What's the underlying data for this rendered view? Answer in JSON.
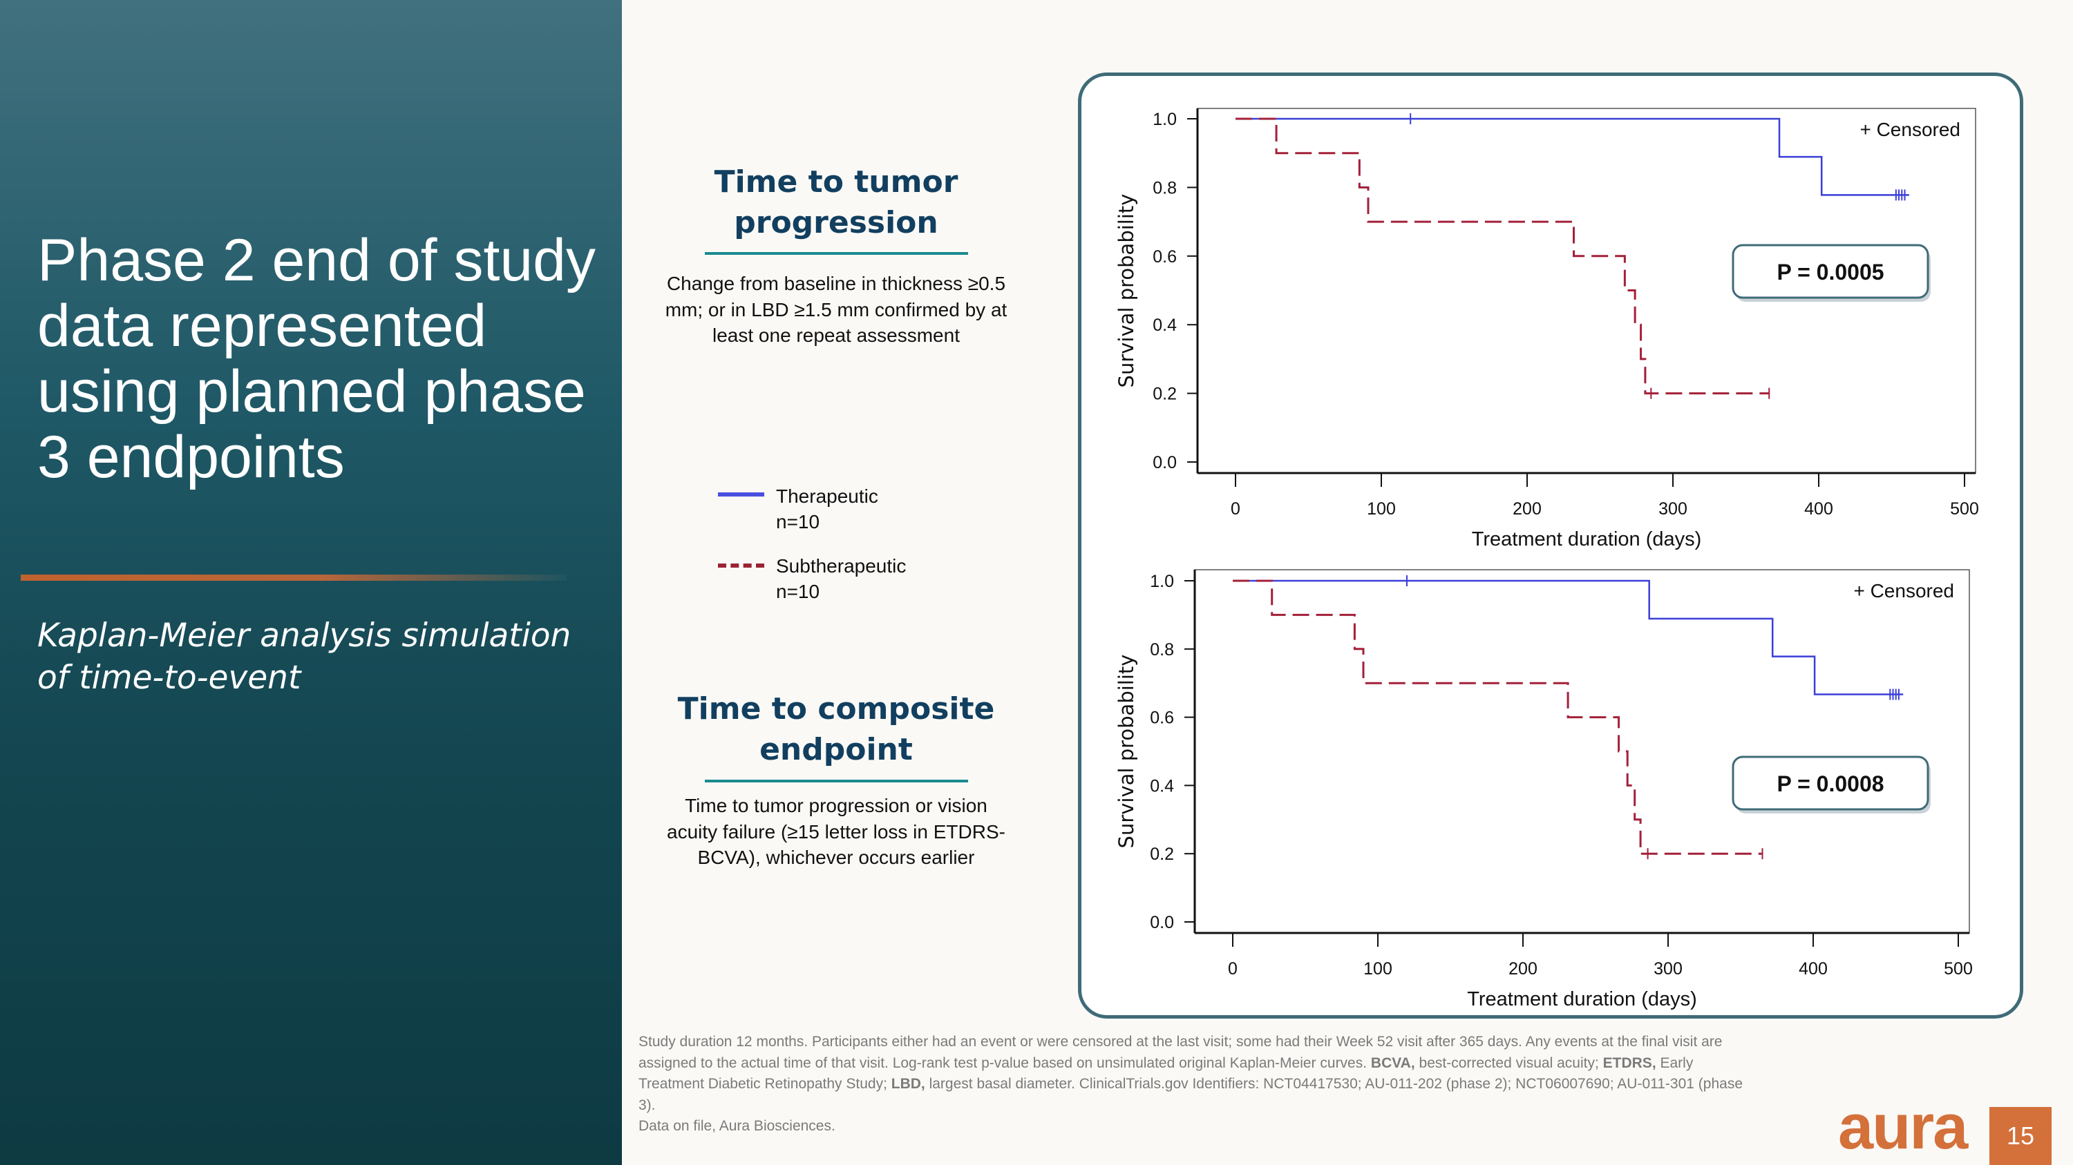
{
  "left": {
    "title": "Phase 2 end of study data represented using planned phase 3 endpoints",
    "subtitle": "Kaplan-Meier analysis simulation of time-to-event"
  },
  "sections": [
    {
      "heading": "Time to tumor progression",
      "description": "Change from baseline in thickness ≥0.5 mm; or in LBD ≥1.5 mm confirmed by at least one repeat assessment"
    },
    {
      "heading": "Time to composite endpoint",
      "description": "Time to tumor progression or vision acuity failure (≥15 letter loss in ETDRS-BCVA), whichever occurs earlier"
    }
  ],
  "legend": [
    {
      "label": "Therapeutic",
      "n": "n=10",
      "color": "#4b4fe0",
      "style": "solid"
    },
    {
      "label": "Subtherapeutic",
      "n": "n=10",
      "color": "#9b2335",
      "style": "dashed"
    }
  ],
  "chart_data": [
    {
      "type": "line",
      "subtype": "kaplan-meier-step",
      "xlabel": "Treatment duration (days)",
      "ylabel": "Survival probability",
      "xlim": [
        0,
        500
      ],
      "ylim": [
        0,
        1
      ],
      "xticks": [
        "0",
        "100",
        "200",
        "300",
        "400",
        "500"
      ],
      "yticks": [
        "0.0",
        "0.2",
        "0.4",
        "0.6",
        "0.8",
        "1.0"
      ],
      "censored_label": "+ Censored",
      "p_value": "P = 0.0005",
      "series": [
        {
          "name": "Therapeutic",
          "color": "#3b3fd8",
          "dash": false,
          "steps": [
            [
              0,
              1.0
            ],
            [
              373,
              0.889
            ],
            [
              402,
              0.778
            ]
          ],
          "end": 462,
          "censored": [
            [
              120,
              1.0
            ],
            [
              453,
              0.778
            ],
            [
              455,
              0.778
            ],
            [
              457,
              0.778
            ],
            [
              459,
              0.778
            ]
          ]
        },
        {
          "name": "Subtherapeutic",
          "color": "#a3203a",
          "dash": true,
          "steps": [
            [
              0,
              1.0
            ],
            [
              28,
              0.9
            ],
            [
              85,
              0.8
            ],
            [
              91,
              0.7
            ],
            [
              232,
              0.6
            ],
            [
              267,
              0.5
            ],
            [
              274,
              0.4
            ],
            [
              278,
              0.3
            ],
            [
              281,
              0.2
            ]
          ],
          "end": 366,
          "censored": [
            [
              285,
              0.2
            ],
            [
              366,
              0.2
            ]
          ]
        }
      ]
    },
    {
      "type": "line",
      "subtype": "kaplan-meier-step",
      "xlabel": "Treatment duration (days)",
      "ylabel": "Survival probability",
      "xlim": [
        0,
        500
      ],
      "ylim": [
        0,
        1
      ],
      "xticks": [
        "0",
        "100",
        "200",
        "300",
        "400",
        "500"
      ],
      "yticks": [
        "0.0",
        "0.2",
        "0.4",
        "0.6",
        "0.8",
        "1.0"
      ],
      "censored_label": "+ Censored",
      "p_value": "P = 0.0008",
      "series": [
        {
          "name": "Therapeutic",
          "color": "#3b3fd8",
          "dash": false,
          "steps": [
            [
              0,
              1.0
            ],
            [
              287,
              0.889
            ],
            [
              372,
              0.778
            ],
            [
              401,
              0.667
            ]
          ],
          "end": 462,
          "censored": [
            [
              120,
              1.0
            ],
            [
              453,
              0.667
            ],
            [
              455,
              0.667
            ],
            [
              457,
              0.667
            ],
            [
              459,
              0.667
            ]
          ]
        },
        {
          "name": "Subtherapeutic",
          "color": "#a3203a",
          "dash": true,
          "steps": [
            [
              0,
              1.0
            ],
            [
              27,
              0.9
            ],
            [
              84,
              0.8
            ],
            [
              90,
              0.7
            ],
            [
              231,
              0.6
            ],
            [
              266,
              0.5
            ],
            [
              272,
              0.4
            ],
            [
              277,
              0.3
            ],
            [
              281,
              0.2
            ]
          ],
          "end": 365,
          "censored": [
            [
              286,
              0.2
            ],
            [
              365,
              0.2
            ]
          ]
        }
      ]
    }
  ],
  "footnote": {
    "text": "Study duration 12 months. Participants either had an event or were censored at the last visit; some had their Week 52 visit after 365 days. Any events at the final visit are assigned to the actual time of that visit. Log-rank test p-value based on unsimulated original Kaplan-Meier curves. ",
    "bcva_abbr": "BCVA,",
    "bcva_def": " best-corrected visual acuity; ",
    "etdrs_abbr": "ETDRS,",
    "etdrs_def": " Early Treatment Diabetic Retinopathy Study; ",
    "lbd_abbr": "LBD,",
    "lbd_def": " largest basal diameter. ClinicalTrials.gov Identifiers: NCT04417530; AU-011-202 (phase 2); NCT06007690; AU-011-301 (phase 3).",
    "source": "Data on file, Aura Biosciences."
  },
  "brand": {
    "logo": "aura",
    "page_number": "15",
    "color": "#d4703a"
  }
}
